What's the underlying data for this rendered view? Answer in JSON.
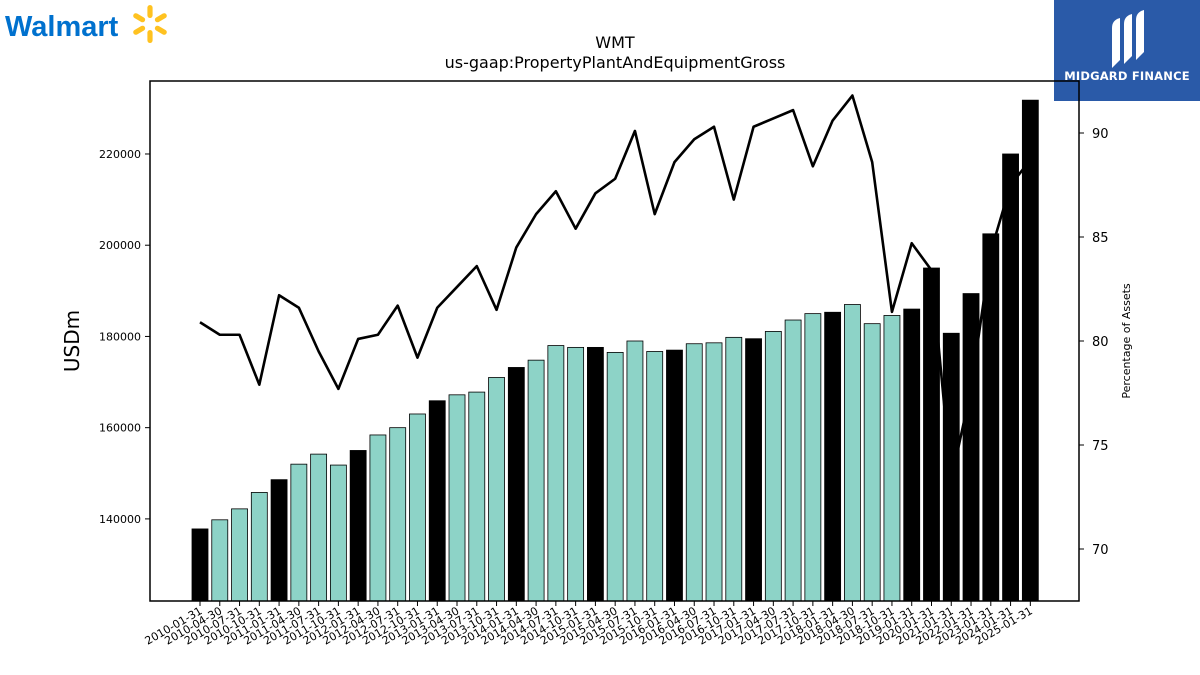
{
  "branding": {
    "left_logo_text": "Walmart",
    "left_logo_icon": "walmart-spark-icon",
    "right_logo_text": "MIDGARD FINANCE",
    "right_logo_icon": "midgard-m-icon",
    "right_logo_bg": "#2a5aa8"
  },
  "chart_data": {
    "type": "bar",
    "title": "WMT",
    "subtitle": "us-gaap:PropertyPlantAndEquipmentGross",
    "ylabel": "USDm",
    "y2label": "Percentage of Assets",
    "ylim": [
      122000,
      236000
    ],
    "y2lim": [
      67.5,
      92.5
    ],
    "yticks": [
      140000,
      160000,
      180000,
      200000,
      220000
    ],
    "y2ticks": [
      70,
      75,
      80,
      85,
      90
    ],
    "grid": false,
    "colors": {
      "annual_bar": "#000000",
      "quarter_bar": "#8dd3c7",
      "line": "#000000"
    },
    "categories": [
      "2010-01-31",
      "2010-04-30",
      "2010-07-31",
      "2010-10-31",
      "2011-01-31",
      "2011-04-30",
      "2011-07-31",
      "2011-10-31",
      "2012-01-31",
      "2012-04-30",
      "2012-07-31",
      "2012-10-31",
      "2013-01-31",
      "2013-04-30",
      "2013-07-31",
      "2013-10-31",
      "2014-01-31",
      "2014-04-30",
      "2014-07-31",
      "2014-10-31",
      "2015-01-31",
      "2015-04-30",
      "2015-07-31",
      "2015-10-31",
      "2016-01-31",
      "2016-04-30",
      "2016-07-31",
      "2016-10-31",
      "2017-01-31",
      "2017-04-30",
      "2017-07-31",
      "2017-10-31",
      "2018-01-31",
      "2018-04-30",
      "2018-07-31",
      "2018-10-31",
      "2019-01-31",
      "2020-01-31",
      "2021-01-31",
      "2022-01-31",
      "2023-01-31",
      "2024-01-31",
      "2025-01-31"
    ],
    "series": [
      {
        "type": "bar",
        "values": [
          137800,
          139800,
          142200,
          145800,
          148600,
          152000,
          154200,
          151800,
          155000,
          158400,
          160000,
          163000,
          165900,
          167200,
          167800,
          171000,
          173200,
          174800,
          178000,
          177600,
          177600,
          176500,
          179000,
          176700,
          177000,
          178400,
          178600,
          179800,
          179500,
          181100,
          183600,
          185000,
          185300,
          187000,
          182800,
          184600,
          186000,
          195000,
          180700,
          189400,
          202500,
          220000,
          231800
        ],
        "highlight": [
          true,
          false,
          false,
          false,
          true,
          false,
          false,
          false,
          true,
          false,
          false,
          false,
          true,
          false,
          false,
          false,
          true,
          false,
          false,
          false,
          true,
          false,
          false,
          false,
          true,
          false,
          false,
          false,
          true,
          false,
          false,
          false,
          true,
          false,
          false,
          false,
          true,
          true,
          true,
          true,
          true,
          true,
          true
        ]
      },
      {
        "type": "line",
        "axis": "right",
        "values": [
          80.9,
          80.3,
          80.3,
          77.9,
          82.2,
          81.6,
          79.5,
          77.7,
          80.1,
          80.3,
          81.7,
          79.2,
          81.6,
          82.6,
          83.6,
          81.5,
          84.5,
          86.1,
          87.2,
          85.4,
          87.1,
          87.8,
          90.1,
          86.1,
          88.6,
          89.7,
          90.3,
          86.8,
          90.3,
          90.7,
          91.1,
          88.4,
          90.6,
          91.8,
          88.6,
          81.4,
          84.7,
          83.4,
          73.3,
          77.7,
          84.3,
          87.5,
          88.7
        ]
      }
    ]
  }
}
